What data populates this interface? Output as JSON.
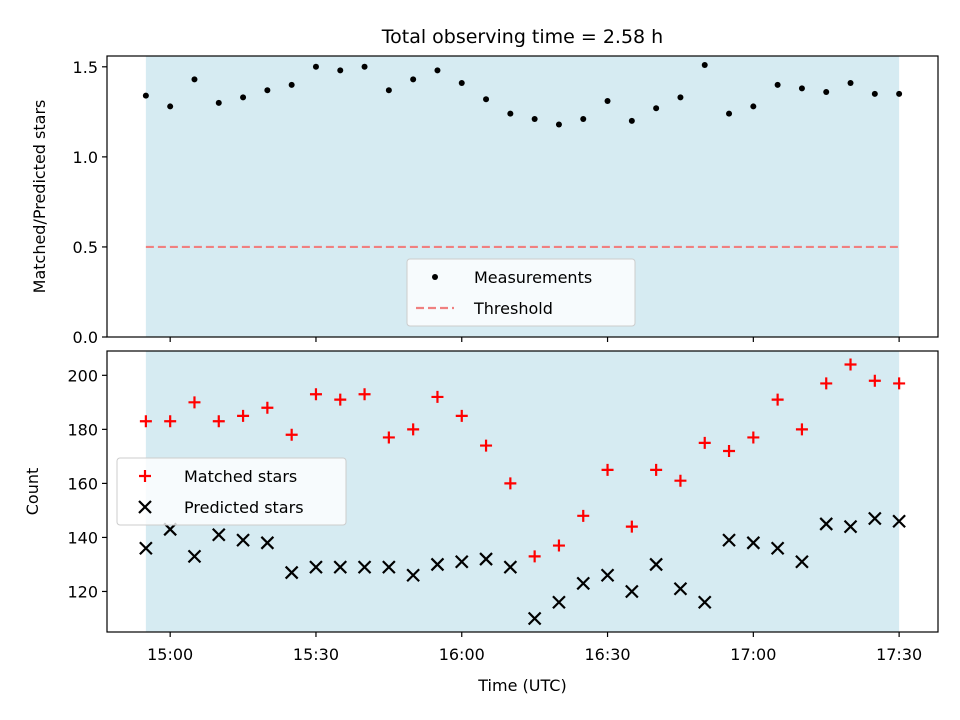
{
  "chart_data": [
    {
      "type": "scatter",
      "title": "Total observing time = 2.58 h",
      "xlabel": "",
      "ylabel": "Matched/Predicted stars",
      "ylim": [
        0,
        1.56
      ],
      "yticks": [
        "0.0",
        "0.5",
        "1.0",
        "1.5"
      ],
      "xticks": [
        "15:00",
        "15:30",
        "16:00",
        "16:30",
        "17:00",
        "17:30"
      ],
      "xlim": [
        "14:47",
        "17:38"
      ],
      "shaded_span": [
        "14:55",
        "17:30"
      ],
      "shade_color": "#add8e6",
      "threshold": 0.5,
      "legend_position": "lower center",
      "series": [
        {
          "name": "Measurements",
          "marker": "dot",
          "color": "#000000",
          "x": [
            "14:55",
            "15:00",
            "15:05",
            "15:10",
            "15:15",
            "15:20",
            "15:25",
            "15:30",
            "15:35",
            "15:40",
            "15:45",
            "15:50",
            "15:55",
            "16:00",
            "16:05",
            "16:10",
            "16:15",
            "16:20",
            "16:25",
            "16:30",
            "16:35",
            "16:40",
            "16:45",
            "16:50",
            "16:55",
            "17:00",
            "17:05",
            "17:10",
            "17:15",
            "17:20",
            "17:25",
            "17:30"
          ],
          "y": [
            1.34,
            1.28,
            1.43,
            1.3,
            1.33,
            1.37,
            1.4,
            1.5,
            1.48,
            1.5,
            1.37,
            1.43,
            1.48,
            1.41,
            1.32,
            1.24,
            1.21,
            1.18,
            1.21,
            1.31,
            1.2,
            1.27,
            1.33,
            1.51,
            1.24,
            1.28,
            1.4,
            1.38,
            1.36,
            1.41,
            1.35,
            1.35
          ]
        },
        {
          "name": "Threshold",
          "marker": "dashed-line",
          "color": "#f08080",
          "x": [
            "14:55",
            "17:30"
          ],
          "y": [
            0.5,
            0.5
          ]
        }
      ]
    },
    {
      "type": "scatter",
      "title": "",
      "xlabel": "Time (UTC)",
      "ylabel": "Count",
      "ylim": [
        105,
        209
      ],
      "yticks": [
        "120",
        "140",
        "160",
        "180",
        "200"
      ],
      "xticks": [
        "15:00",
        "15:30",
        "16:00",
        "16:30",
        "17:00",
        "17:30"
      ],
      "xlim": [
        "14:47",
        "17:38"
      ],
      "shaded_span": [
        "14:55",
        "17:30"
      ],
      "shade_color": "#add8e6",
      "legend_position": "center-left",
      "series": [
        {
          "name": "Matched stars",
          "marker": "plus",
          "color": "#ff0000",
          "x": [
            "14:55",
            "15:00",
            "15:05",
            "15:10",
            "15:15",
            "15:20",
            "15:25",
            "15:30",
            "15:35",
            "15:40",
            "15:45",
            "15:50",
            "15:55",
            "16:00",
            "16:05",
            "16:10",
            "16:15",
            "16:20",
            "16:25",
            "16:30",
            "16:35",
            "16:40",
            "16:45",
            "16:50",
            "16:55",
            "17:00",
            "17:05",
            "17:10",
            "17:15",
            "17:20",
            "17:25",
            "17:30"
          ],
          "y": [
            183,
            183,
            190,
            183,
            185,
            188,
            178,
            193,
            191,
            193,
            177,
            180,
            192,
            185,
            174,
            160,
            133,
            137,
            148,
            165,
            144,
            165,
            161,
            175,
            172,
            177,
            191,
            180,
            197,
            204,
            198,
            197
          ]
        },
        {
          "name": "Predicted stars",
          "marker": "x",
          "color": "#000000",
          "x": [
            "14:55",
            "15:00",
            "15:05",
            "15:10",
            "15:15",
            "15:20",
            "15:25",
            "15:30",
            "15:35",
            "15:40",
            "15:45",
            "15:50",
            "15:55",
            "16:00",
            "16:05",
            "16:10",
            "16:15",
            "16:20",
            "16:25",
            "16:30",
            "16:35",
            "16:40",
            "16:45",
            "16:50",
            "16:55",
            "17:00",
            "17:05",
            "17:10",
            "17:15",
            "17:20",
            "17:25",
            "17:30"
          ],
          "y": [
            136,
            143,
            133,
            141,
            139,
            138,
            127,
            129,
            129,
            129,
            129,
            126,
            130,
            131,
            132,
            129,
            110,
            116,
            123,
            126,
            120,
            130,
            121,
            116,
            139,
            138,
            136,
            131,
            145,
            144,
            147,
            146
          ]
        }
      ]
    }
  ]
}
